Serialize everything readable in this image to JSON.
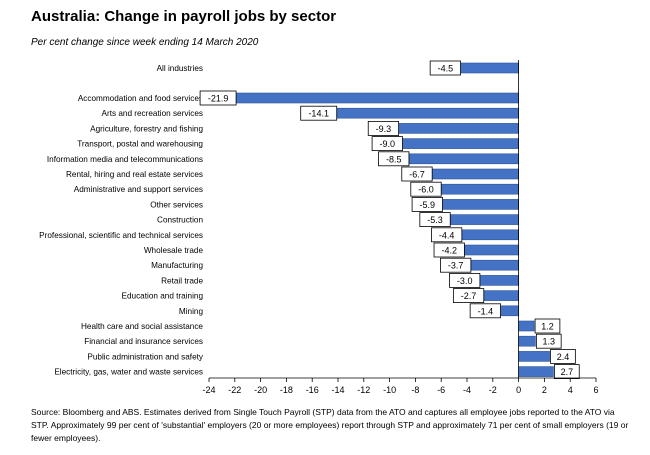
{
  "title": "Australia: Change in payroll jobs by sector",
  "subtitle": "Per cent change since week ending 14 March 2020",
  "source": "Source: Bloomberg and ABS. Estimates derived from Single Touch Payroll (STP) data from the ATO and captures all employee jobs reported to the ATO via STP. Approximately 99 per cent of 'substantial' employers (20 or more employees) report through STP and approximately 71 per cent of small employers (19 or fewer employees).",
  "colors": {
    "bar": "#4472C4",
    "bar_edge": "#2F5597",
    "label_border": "#000000",
    "axis": "#000000"
  },
  "chart_data": {
    "type": "bar",
    "orientation": "horizontal",
    "title": "Australia: Change in payroll jobs by sector",
    "subtitle": "Per cent change since week ending 14 March 2020",
    "xlim": [
      -24,
      6
    ],
    "xticks": [
      -24,
      -22,
      -20,
      -18,
      -16,
      -14,
      -12,
      -10,
      -8,
      -6,
      -4,
      -2,
      0,
      2,
      4,
      6
    ],
    "grid": false,
    "legend": "none",
    "categories": [
      "All industries",
      "Accommodation and food services",
      "Arts and recreation services",
      "Agriculture, forestry and fishing",
      "Transport, postal and warehousing",
      "Information media and telecommunications",
      "Rental, hiring and real estate services",
      "Administrative and support services",
      "Other services",
      "Construction",
      "Professional, scientific and technical services",
      "Wholesale trade",
      "Manufacturing",
      "Retail trade",
      "Education and training",
      "Mining",
      "Health care and social assistance",
      "Financial and insurance services",
      "Public administration and safety",
      "Electricity, gas, water and waste services"
    ],
    "values": [
      -4.5,
      -21.9,
      -14.1,
      -9.3,
      -9.0,
      -8.5,
      -6.7,
      -6.0,
      -5.9,
      -5.3,
      -4.4,
      -4.2,
      -3.7,
      -3.0,
      -2.7,
      -1.4,
      1.2,
      1.3,
      2.4,
      2.7
    ],
    "value_labels": [
      "-4.5",
      "-21.9",
      "-14.1",
      "-9.3",
      "-9.0",
      "-8.5",
      "-6.7",
      "-6.0",
      "-5.9",
      "-5.3",
      "-4.4",
      "-4.2",
      "-3.7",
      "-3.0",
      "-2.7",
      "-1.4",
      "1.2",
      "1.3",
      "2.4",
      "2.7"
    ]
  }
}
